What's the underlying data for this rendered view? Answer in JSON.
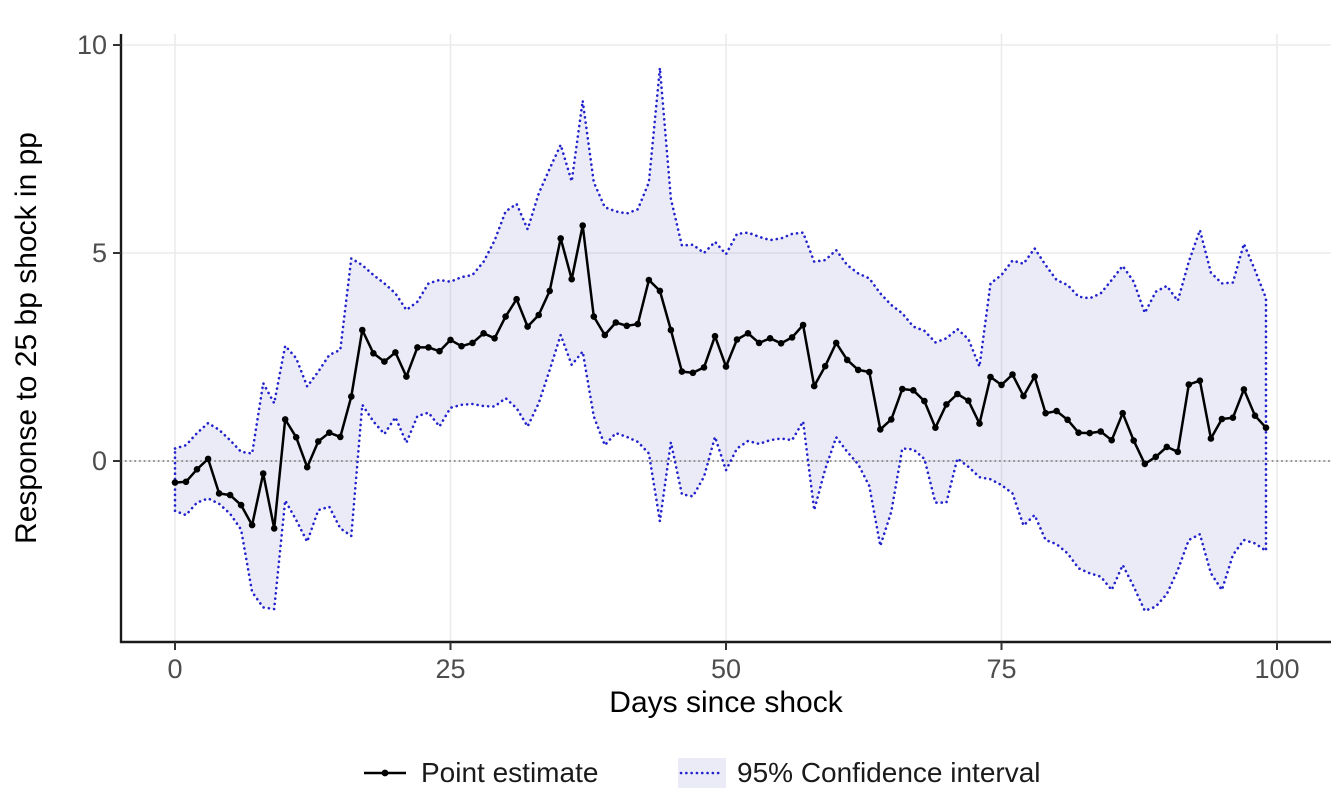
{
  "figure": {
    "type": "impulse-response-plot",
    "background": "#ffffff"
  },
  "legend": {
    "point_label": "Point estimate",
    "ci_label": "95% Confidence interval"
  },
  "colors": {
    "point_line": "#000000",
    "ci_border": "#2222cc",
    "ci_fill_rgba": "rgba(98,98,192,0.13)",
    "zero_line": "#8c8c8c",
    "gridline": "#ebebeb",
    "axis_line": "#1a1a1a",
    "tick_text": "#4d4d4d"
  },
  "chart_data": {
    "type": "line",
    "title": "",
    "xlabel": "Days since shock",
    "ylabel": "Response to 25 bp shock in pp",
    "x_ticks": [
      0,
      25,
      50,
      75,
      100
    ],
    "y_ticks": [
      0,
      5,
      10
    ],
    "xlim": [
      -5,
      105
    ],
    "ylim": [
      -4.35,
      10.26
    ],
    "grid": true,
    "legend_position": "bottom",
    "zero_reference_line": {
      "y": 0,
      "style": "dotted",
      "color": "#8c8c8c"
    },
    "x_start": 0,
    "x_step": 1,
    "series": [
      {
        "name": "Point estimate",
        "style": "line+markers",
        "color": "#000000",
        "values": [
          -0.52,
          -0.5,
          -0.2,
          0.05,
          -0.78,
          -0.82,
          -1.06,
          -1.54,
          -0.3,
          -1.62,
          1.0,
          0.57,
          -0.15,
          0.47,
          0.68,
          0.58,
          1.55,
          3.15,
          2.59,
          2.39,
          2.61,
          2.03,
          2.73,
          2.73,
          2.64,
          2.91,
          2.76,
          2.84,
          3.07,
          2.95,
          3.47,
          3.89,
          3.23,
          3.51,
          4.09,
          5.35,
          4.37,
          5.66,
          3.47,
          3.03,
          3.33,
          3.25,
          3.29,
          4.35,
          4.09,
          3.15,
          2.15,
          2.12,
          2.25,
          3.0,
          2.27,
          2.92,
          3.07,
          2.84,
          2.95,
          2.83,
          2.97,
          3.27,
          1.8,
          2.28,
          2.84,
          2.43,
          2.19,
          2.14,
          0.76,
          1.0,
          1.73,
          1.7,
          1.44,
          0.8,
          1.36,
          1.61,
          1.45,
          0.9,
          2.02,
          1.83,
          2.08,
          1.56,
          2.03,
          1.15,
          1.2,
          0.99,
          0.68,
          0.67,
          0.71,
          0.5,
          1.15,
          0.49,
          -0.07,
          0.1,
          0.34,
          0.22,
          1.84,
          1.93,
          0.54,
          1.01,
          1.04,
          1.72,
          1.09,
          0.8
        ]
      },
      {
        "name": "95% Confidence interval",
        "style": "band",
        "fill": "rgba(98,98,192,0.13)",
        "border_color": "#2222cc",
        "border_style": "dotted",
        "upper": [
          0.3,
          0.38,
          0.67,
          0.91,
          0.75,
          0.5,
          0.22,
          0.18,
          1.87,
          1.39,
          2.77,
          2.47,
          1.79,
          2.15,
          2.55,
          2.67,
          4.87,
          4.71,
          4.47,
          4.27,
          4.03,
          3.63,
          3.83,
          4.27,
          4.35,
          4.31,
          4.42,
          4.47,
          4.79,
          5.3,
          6.0,
          6.18,
          5.57,
          6.43,
          7.03,
          7.6,
          6.72,
          8.66,
          6.7,
          6.1,
          6.0,
          5.95,
          6.05,
          6.7,
          9.45,
          6.3,
          5.18,
          5.2,
          5.0,
          5.27,
          4.97,
          5.46,
          5.49,
          5.39,
          5.31,
          5.35,
          5.46,
          5.49,
          4.79,
          4.83,
          5.07,
          4.71,
          4.51,
          4.39,
          4.03,
          3.75,
          3.55,
          3.23,
          3.13,
          2.85,
          2.95,
          3.17,
          2.93,
          2.27,
          4.27,
          4.47,
          4.82,
          4.74,
          5.11,
          4.71,
          4.35,
          4.23,
          3.95,
          3.91,
          4.03,
          4.35,
          4.69,
          4.31,
          3.56,
          4.07,
          4.21,
          3.85,
          4.79,
          5.55,
          4.53,
          4.27,
          4.29,
          5.22,
          4.59,
          3.91
        ],
        "lower": [
          -1.2,
          -1.3,
          -1.0,
          -0.9,
          -1.03,
          -1.27,
          -1.65,
          -3.15,
          -3.52,
          -3.56,
          -0.95,
          -1.42,
          -1.94,
          -1.18,
          -1.1,
          -1.62,
          -1.8,
          1.35,
          0.95,
          0.65,
          1.05,
          0.44,
          1.08,
          1.16,
          0.83,
          1.28,
          1.35,
          1.37,
          1.32,
          1.31,
          1.51,
          1.27,
          0.83,
          1.39,
          2.19,
          3.03,
          2.31,
          2.63,
          1.07,
          0.38,
          0.67,
          0.58,
          0.46,
          0.18,
          -1.45,
          0.45,
          -0.8,
          -0.85,
          -0.38,
          0.58,
          -0.22,
          0.3,
          0.48,
          0.41,
          0.5,
          0.54,
          0.5,
          0.95,
          -1.18,
          -0.2,
          0.57,
          0.22,
          -0.08,
          -0.6,
          -2.04,
          -1.22,
          0.3,
          0.28,
          0.05,
          -1.0,
          -1.0,
          0.06,
          -0.14,
          -0.39,
          -0.44,
          -0.58,
          -0.78,
          -1.55,
          -1.3,
          -1.9,
          -2.0,
          -2.22,
          -2.58,
          -2.7,
          -2.78,
          -3.1,
          -2.5,
          -3.02,
          -3.6,
          -3.5,
          -3.2,
          -2.62,
          -1.9,
          -1.76,
          -2.7,
          -3.1,
          -2.26,
          -1.9,
          -1.98,
          -2.16
        ]
      }
    ]
  }
}
